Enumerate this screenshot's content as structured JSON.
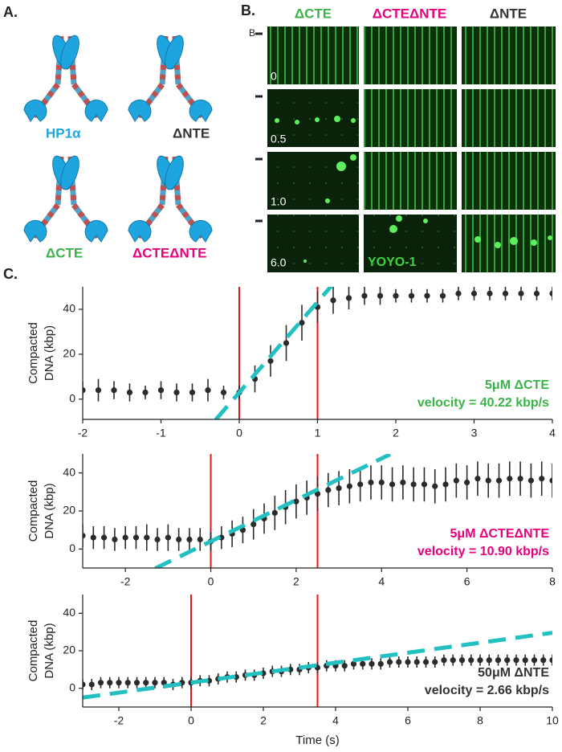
{
  "panels": {
    "a": {
      "label": "A.",
      "constructs": [
        "HP1α",
        "ΔNTE",
        "ΔCTE",
        "ΔCTEΔNTE"
      ]
    },
    "b": {
      "label": "B.",
      "columns": [
        "ΔCTE",
        "ΔCTEΔNTE",
        "ΔNTE"
      ],
      "marker": "B",
      "times": [
        "0",
        "0.5",
        "1.0",
        "6.0"
      ],
      "stain": "YOYO-1"
    },
    "c": {
      "label": "C."
    }
  },
  "chart_data": [
    {
      "type": "scatter",
      "ylabel": [
        "Compacted",
        "DNA (kbp)"
      ],
      "xlim": [
        -2,
        4
      ],
      "xticks": [
        -2,
        -1,
        0,
        1,
        2,
        3,
        4
      ],
      "ylim": [
        -9,
        50
      ],
      "yticks": [
        0,
        20,
        40
      ],
      "color": "#2b2b2b",
      "x": [
        -2,
        -1.8,
        -1.6,
        -1.4,
        -1.2,
        -1,
        -0.8,
        -0.6,
        -0.4,
        -0.2,
        0,
        0.2,
        0.4,
        0.6,
        0.8,
        1,
        1.2,
        1.4,
        1.6,
        1.8,
        2,
        2.2,
        2.4,
        2.6,
        2.8,
        3,
        3.2,
        3.4,
        3.6,
        3.8,
        4
      ],
      "values": [
        4,
        4,
        4,
        3,
        3,
        4,
        3,
        3,
        4,
        3,
        3,
        9,
        17,
        25,
        34,
        41,
        44,
        45,
        46,
        46,
        46,
        46,
        46,
        46,
        47,
        47,
        47,
        47,
        47,
        47,
        47
      ],
      "errors": [
        4,
        5,
        4,
        4,
        3,
        4,
        4,
        4,
        5,
        3,
        3,
        6,
        7,
        8,
        8,
        7,
        6,
        5,
        4,
        4,
        3,
        3,
        3,
        3,
        3,
        3,
        3,
        3,
        3,
        3,
        3
      ],
      "vlines": [
        0,
        1
      ],
      "vline_color": "#e3161b",
      "fit": {
        "x": [
          -0.3,
          1.2
        ],
        "values": [
          -9.1,
          51.3
        ],
        "color": "#22c0c0"
      },
      "annotations": [
        {
          "text": "5μM ΔCTE",
          "color": "#3cb34a"
        },
        {
          "text": "velocity = 40.22 kbp/s",
          "color": "#3cb34a"
        }
      ]
    },
    {
      "type": "scatter",
      "ylabel": [
        "Compacted",
        "DNA (kbp)"
      ],
      "xlim": [
        -3,
        8
      ],
      "xticks": [
        -2,
        0,
        2,
        4,
        6,
        8
      ],
      "ylim": [
        -10,
        50
      ],
      "yticks": [
        0,
        20,
        40
      ],
      "color": "#2b2b2b",
      "x": [
        -3,
        -2.75,
        -2.5,
        -2.25,
        -2,
        -1.75,
        -1.5,
        -1.25,
        -1,
        -0.75,
        -0.5,
        -0.25,
        0,
        0.25,
        0.5,
        0.75,
        1,
        1.25,
        1.5,
        1.75,
        2,
        2.25,
        2.5,
        2.75,
        3,
        3.25,
        3.5,
        3.75,
        4,
        4.25,
        4.5,
        4.75,
        5,
        5.25,
        5.5,
        5.75,
        6,
        6.25,
        6.5,
        6.75,
        7,
        7.25,
        7.5,
        7.75,
        8
      ],
      "values": [
        7,
        6,
        6,
        5,
        6,
        6,
        6,
        5,
        6,
        5,
        5,
        5,
        4,
        6,
        8,
        10,
        13,
        16,
        19,
        22,
        25,
        27,
        29,
        31,
        32,
        33,
        34,
        35,
        35,
        34,
        35,
        34,
        34,
        33,
        34,
        36,
        35,
        37,
        36,
        36,
        37,
        37,
        36,
        37,
        36
      ],
      "errors": [
        6,
        6,
        6,
        6,
        6,
        6,
        7,
        6,
        7,
        6,
        6,
        6,
        5,
        6,
        7,
        7,
        8,
        8,
        9,
        9,
        9,
        9,
        9,
        9,
        9,
        9,
        9,
        9,
        9,
        9,
        9,
        9,
        9,
        9,
        9,
        9,
        9,
        9,
        9,
        9,
        9,
        9,
        9,
        9,
        9
      ],
      "vlines": [
        0,
        2.5
      ],
      "vline_color": "#e3161b",
      "fit": {
        "x": [
          -1.3,
          4.2
        ],
        "values": [
          -10.2,
          49.8
        ],
        "color": "#22c0c0"
      },
      "annotations": [
        {
          "text": "5μM ΔCTEΔNTE",
          "color": "#e6007e"
        },
        {
          "text": "velocity = 10.90 kbp/s",
          "color": "#e6007e"
        }
      ]
    },
    {
      "type": "scatter",
      "ylabel": [
        "Compacted",
        "DNA (kbp)"
      ],
      "xlabel": "Time (s)",
      "xlim": [
        -3,
        10
      ],
      "xticks": [
        -2,
        0,
        2,
        4,
        6,
        8,
        10
      ],
      "ylim": [
        -10,
        50
      ],
      "yticks": [
        0,
        20,
        40
      ],
      "color": "#2b2b2b",
      "x": [
        -3,
        -2.75,
        -2.5,
        -2.25,
        -2,
        -1.75,
        -1.5,
        -1.25,
        -1,
        -0.75,
        -0.5,
        -0.25,
        0,
        0.25,
        0.5,
        0.75,
        1,
        1.25,
        1.5,
        1.75,
        2,
        2.25,
        2.5,
        2.75,
        3,
        3.25,
        3.5,
        3.75,
        4,
        4.25,
        4.5,
        4.75,
        5,
        5.25,
        5.5,
        5.75,
        6,
        6.25,
        6.5,
        6.75,
        7,
        7.25,
        7.5,
        7.75,
        8,
        8.25,
        8.5,
        8.75,
        9,
        9.25,
        9.5,
        9.75,
        10
      ],
      "values": [
        2,
        2,
        3,
        3,
        3,
        3,
        3,
        3,
        3,
        3,
        2,
        3,
        3,
        4,
        4,
        5,
        6,
        6,
        7,
        7,
        8,
        9,
        9,
        10,
        10,
        11,
        11,
        12,
        12,
        12,
        13,
        13,
        13,
        13,
        14,
        14,
        14,
        14,
        14,
        14,
        15,
        15,
        15,
        15,
        15,
        15,
        15,
        15,
        15,
        15,
        15,
        15,
        15
      ],
      "errors": [
        3,
        3,
        3,
        3,
        3,
        3,
        3,
        3,
        3,
        3,
        3,
        3,
        3,
        3,
        3,
        3,
        3,
        3,
        3,
        3,
        3,
        3,
        3,
        3,
        3,
        3,
        3,
        3,
        3,
        3,
        3,
        3,
        3,
        3,
        3,
        3,
        3,
        3,
        3,
        3,
        3,
        3,
        3,
        3,
        3,
        3,
        3,
        3,
        3,
        3,
        3,
        3,
        3
      ],
      "vlines": [
        0,
        3.5
      ],
      "vline_color": "#e3161b",
      "fit": {
        "x": [
          -3,
          10
        ],
        "values": [
          -5,
          29.6
        ],
        "color": "#22c0c0"
      },
      "annotations": [
        {
          "text": "50μM ΔNTE",
          "color": "#333333"
        },
        {
          "text": "velocity = 2.66 kbp/s",
          "color": "#333333"
        }
      ]
    }
  ]
}
